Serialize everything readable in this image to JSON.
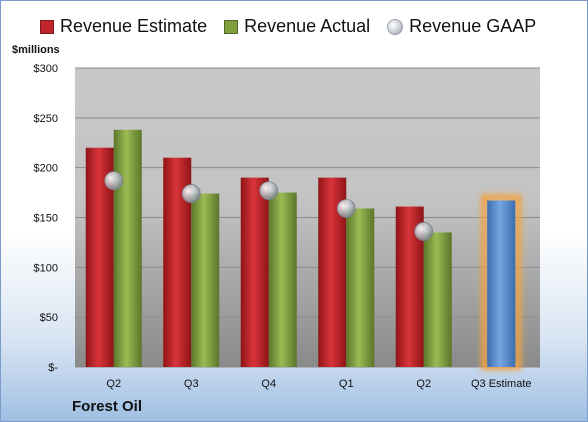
{
  "chart_data": {
    "type": "bar",
    "categories": [
      "Q2",
      "Q3",
      "Q4",
      "Q1",
      "Q2",
      "Q3 Estimate"
    ],
    "series": [
      {
        "name": "Revenue Estimate",
        "values": [
          220,
          210,
          190,
          190,
          161,
          null
        ],
        "color": "#c0262c"
      },
      {
        "name": "Revenue Actual",
        "values": [
          238,
          174,
          175,
          159,
          135,
          null
        ],
        "color": "#7f9f3f"
      },
      {
        "name": "Revenue GAAP",
        "values": [
          187,
          174,
          177,
          159,
          136,
          null
        ],
        "color": "#b9bec6"
      },
      {
        "name": "Q3 Estimate",
        "values": [
          null,
          null,
          null,
          null,
          null,
          167
        ],
        "color": "#4f86cd"
      }
    ],
    "ylabel": "$millions",
    "ylim": [
      0,
      300
    ],
    "yticks": [
      0,
      50,
      100,
      150,
      200,
      250,
      300
    ],
    "ytick_labels": [
      "$-",
      "$50",
      "$100",
      "$150",
      "$200",
      "$250",
      "$300"
    ],
    "grid": true,
    "legend_position": "top"
  },
  "legend": {
    "estimate": "Revenue Estimate",
    "actual": "Revenue Actual",
    "gaap": "Revenue GAAP"
  },
  "unit_label": "$millions",
  "company": "Forest Oil",
  "colors": {
    "estimate": "#c0262c",
    "actual": "#7f9f3f",
    "projection": "#4f86cd",
    "glow": "#f4a340"
  }
}
